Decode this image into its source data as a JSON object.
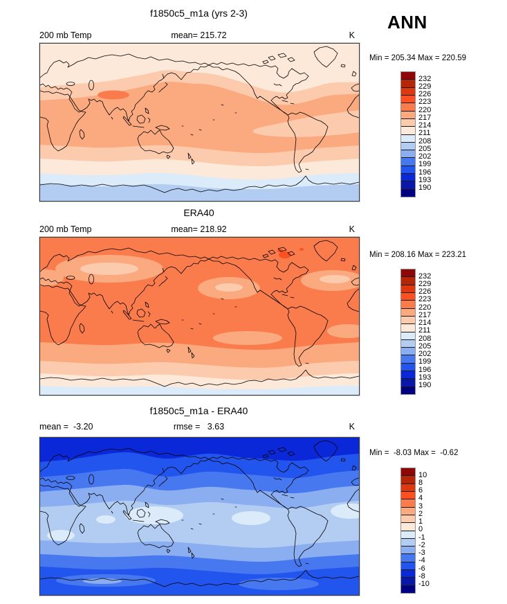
{
  "header": {
    "season_label": "ANN"
  },
  "palette_top_to_bottom": [
    "#8f0606",
    "#b52508",
    "#dd3810",
    "#fa5022",
    "#fa7c4c",
    "#fbaa80",
    "#fccbae",
    "#fde9d9",
    "#dcebfa",
    "#b3cdf2",
    "#8aaef0",
    "#4878f0",
    "#2255ee",
    "#0a28d8",
    "#0a18a8",
    "#000080"
  ],
  "panels": [
    {
      "title": "f1850c5_m1a (yrs 2-3)",
      "left_text": "200 mb Temp",
      "center_text": "mean= 215.72",
      "right_text": "K",
      "minmax": "Min = 205.34 Max = 220.59",
      "colorbar_labels": [
        "232",
        "229",
        "226",
        "223",
        "220",
        "217",
        "214",
        "211",
        "208",
        "205",
        "202",
        "199",
        "196",
        "193",
        "190"
      ]
    },
    {
      "title": "ERA40",
      "left_text": "200 mb Temp",
      "center_text": "mean= 218.92",
      "right_text": "K",
      "minmax": "Min = 208.16 Max = 223.21",
      "colorbar_labels": [
        "232",
        "229",
        "226",
        "223",
        "220",
        "217",
        "214",
        "211",
        "208",
        "205",
        "202",
        "199",
        "196",
        "193",
        "190"
      ]
    },
    {
      "title": "f1850c5_m1a - ERA40",
      "left_text": "mean =  -3.20",
      "center_text": "rmse =   3.63",
      "right_text": "K",
      "minmax": "Min =  -8.03 Max =  -0.62",
      "colorbar_labels": [
        "10",
        "8",
        "6",
        "4",
        "3",
        "2",
        "1",
        "0",
        "-1",
        "-2",
        "-3",
        "-4",
        "-6",
        "-8",
        "-10"
      ]
    }
  ],
  "chart_data": [
    {
      "type": "heatmap",
      "subtype": "filled-contour global map",
      "title": "f1850c5_m1a (yrs 2-3)",
      "variable": "200 mb Temp",
      "season": "ANN",
      "units": "K",
      "mean": 215.72,
      "min": 205.34,
      "max": 220.59,
      "levels": [
        190,
        193,
        196,
        199,
        202,
        205,
        208,
        211,
        214,
        217,
        220,
        223,
        226,
        229,
        232
      ],
      "projection": "cylindrical equidistant, lon 0-360E, lat 90S-90N",
      "legend_position": "right",
      "pattern_notes": "cream 211-214 K over Arctic; broad 217-220 K orange band through subtropics/tropics; 220-223 K maximum over Tibet; lighter 214-217 K wedge in eastern tropical Pacific/Atlantic; bands cool southward to 205-208 K over Antarctica"
    },
    {
      "type": "heatmap",
      "subtype": "filled-contour global map",
      "title": "ERA40",
      "variable": "200 mb Temp",
      "season": "ANN",
      "units": "K",
      "mean": 218.92,
      "min": 208.16,
      "max": 223.21,
      "levels": [
        190,
        193,
        196,
        199,
        202,
        205,
        208,
        211,
        214,
        217,
        220,
        223,
        226,
        229,
        232
      ],
      "projection": "cylindrical equidistant, lon 0-360E, lat 90S-90N",
      "legend_position": "right",
      "pattern_notes": "dominant 220-223 K orange globally; 217-220 K patches over central Asia, NE Pacific and N Atlantic; >223 K spots near Hudson Bay; cooling toward Antarctica to 208-211 K at bottom edge"
    },
    {
      "type": "heatmap",
      "subtype": "filled-contour difference map",
      "title": "f1850c5_m1a - ERA40",
      "variable": "200 mb Temp difference",
      "season": "ANN",
      "units": "K",
      "mean": -3.2,
      "rmse": 3.63,
      "min": -8.03,
      "max": -0.62,
      "levels": [
        -10,
        -8,
        -6,
        -4,
        -3,
        -2,
        -1,
        0,
        1,
        2,
        3,
        4,
        6,
        8,
        10
      ],
      "projection": "cylindrical equidistant, lon 0-360E, lat 90S-90N",
      "legend_position": "right",
      "pattern_notes": "entire field negative (model colder): -6 to -8 K over Arctic, weakening to -1 to -2 K in tropics with 0 to -1 K patches, strengthening again to -4 to -6 K over southern oceans and Antarctica"
    }
  ]
}
